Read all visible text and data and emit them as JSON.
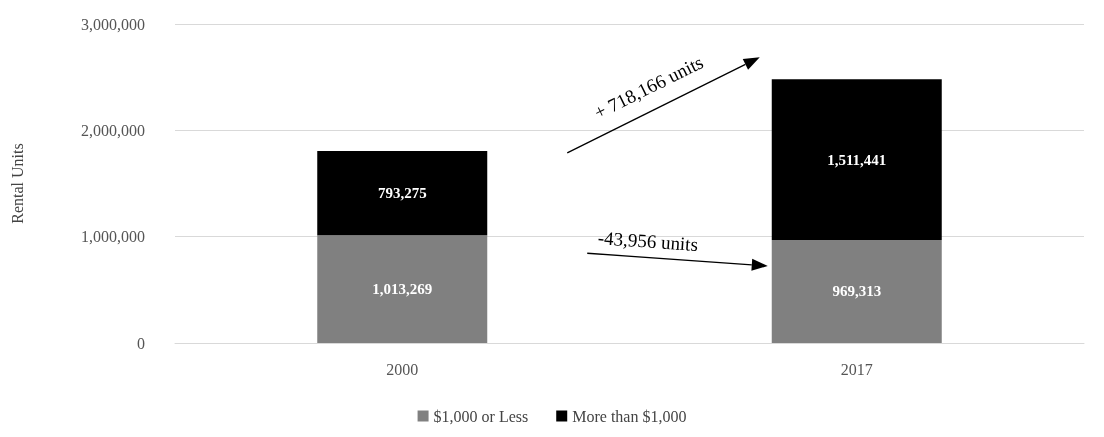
{
  "chart_data": {
    "type": "bar",
    "ylabel": "Rental Units",
    "categories": [
      "2000",
      "2017"
    ],
    "stacked": true,
    "series": [
      {
        "name": "$1,000 or Less",
        "color": "#808080",
        "values": [
          1013269,
          969313
        ],
        "value_labels": [
          "1,013,269",
          "969,313"
        ]
      },
      {
        "name": "More than $1,000",
        "color": "#000000",
        "values": [
          793275,
          1511441
        ],
        "value_labels": [
          "793,275",
          "1,511,441"
        ]
      }
    ],
    "ylim": [
      0,
      3000000
    ],
    "yticks": [
      0,
      {
        "value": 1000000,
        "label": "1,000,000"
      },
      {
        "value": 2000000,
        "label": "2,000,000"
      },
      {
        "value": 3000000,
        "label": "3,000,000"
      }
    ],
    "grid": "y",
    "legend": "bottom",
    "annotations": [
      "+ 718,166 units",
      "-43,956 units"
    ]
  }
}
